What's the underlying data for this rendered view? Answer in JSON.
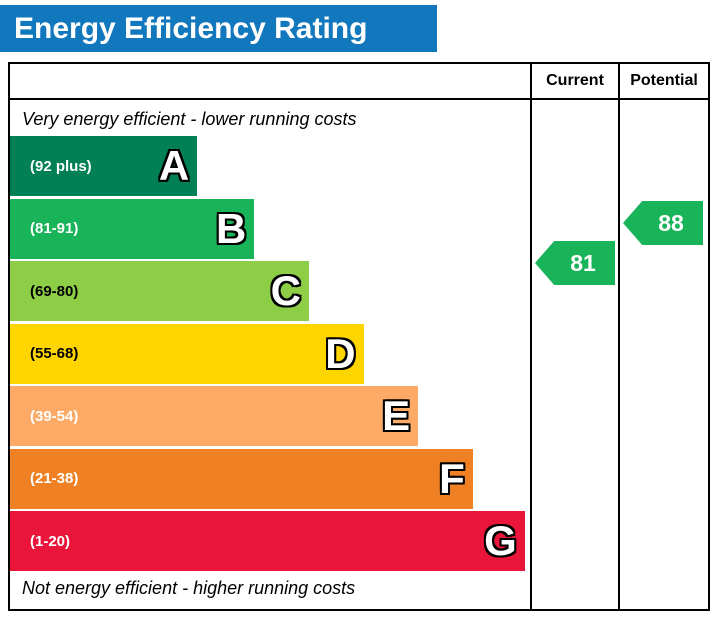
{
  "title": "Energy Efficiency Rating",
  "header": {
    "current": "Current",
    "potential": "Potential"
  },
  "notes": {
    "top": "Very energy efficient - lower running costs",
    "bottom": "Not energy efficient - higher running costs"
  },
  "chart_data": {
    "type": "bar",
    "subtype": "epc-energy-efficiency-rating",
    "title": "Energy Efficiency Rating",
    "accent_color": "#1278be",
    "bands": [
      {
        "letter": "A",
        "range": "(92 plus)",
        "color": "#008054",
        "text_color": "#ffffff",
        "width_pct": 36
      },
      {
        "letter": "B",
        "range": "(81-91)",
        "color": "#19b459",
        "text_color": "#ffffff",
        "width_pct": 47
      },
      {
        "letter": "C",
        "range": "(69-80)",
        "color": "#8dce46",
        "text_color": "#000000",
        "width_pct": 57.5
      },
      {
        "letter": "D",
        "range": "(55-68)",
        "color": "#ffd500",
        "text_color": "#000000",
        "width_pct": 68
      },
      {
        "letter": "E",
        "range": "(39-54)",
        "color": "#fcaa65",
        "text_color": "#ffffff",
        "width_pct": 78.5
      },
      {
        "letter": "F",
        "range": "(21-38)",
        "color": "#ef8023",
        "text_color": "#ffffff",
        "width_pct": 89
      },
      {
        "letter": "G",
        "range": "(1-20)",
        "color": "#e9153b",
        "text_color": "#ffffff",
        "width_pct": 99
      }
    ],
    "current": {
      "value": "81",
      "color": "#19b459"
    },
    "potential": {
      "value": "88",
      "color": "#19b459"
    }
  }
}
